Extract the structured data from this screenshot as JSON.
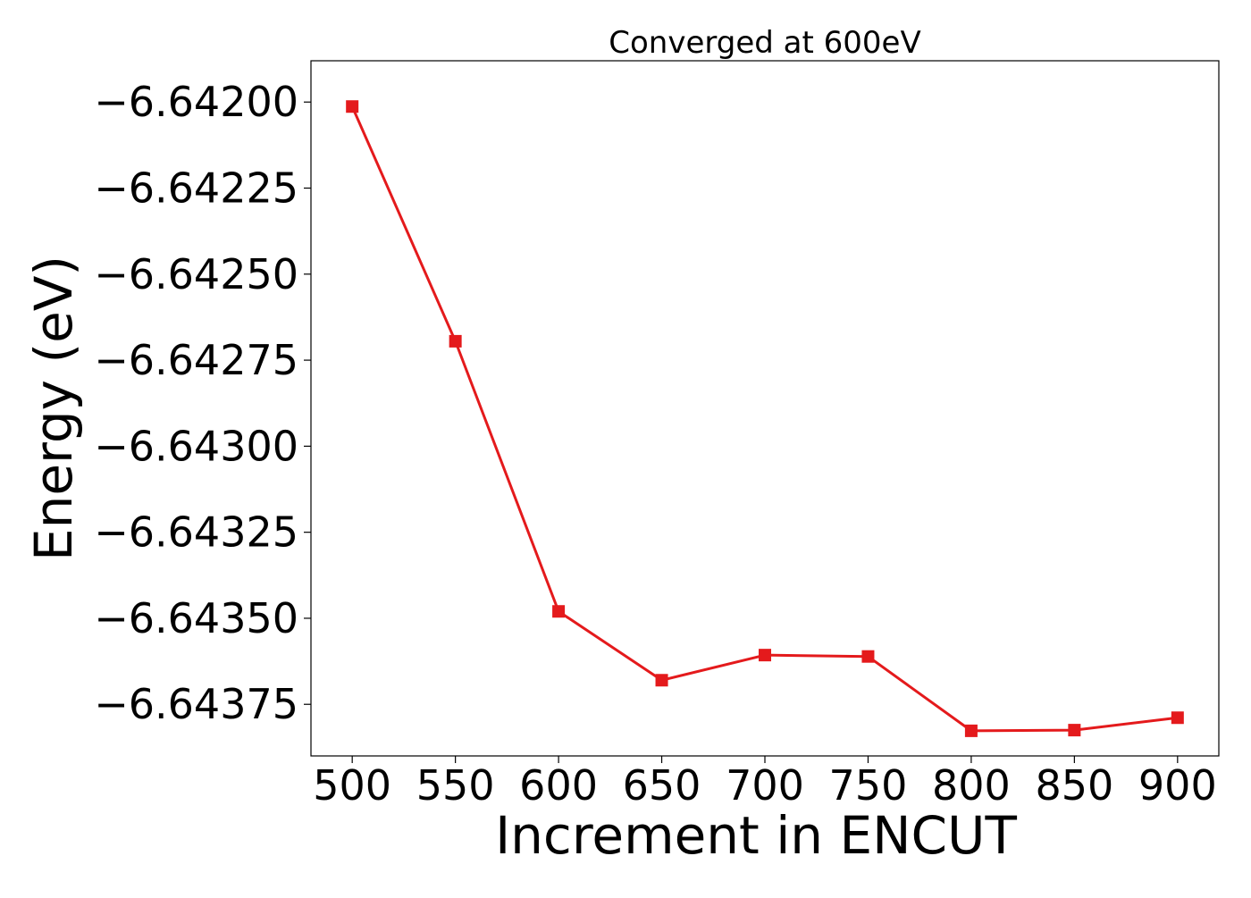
{
  "chart_data": {
    "type": "line",
    "title": "Converged at 600eV",
    "xlabel": "Increment in ENCUT",
    "ylabel": "Energy (eV)",
    "x": [
      500,
      550,
      600,
      650,
      700,
      750,
      800,
      850,
      900
    ],
    "series": [
      {
        "values": [
          -6.642013,
          -6.642695,
          -6.64348,
          -6.64368,
          -6.643607,
          -6.643611,
          -6.643827,
          -6.643825,
          -6.643789
        ],
        "color": "#e41a1c",
        "marker": "square"
      }
    ],
    "xlim": [
      480,
      920
    ],
    "ylim": [
      -6.6439,
      -6.64188
    ],
    "xticks": [
      500,
      550,
      600,
      650,
      700,
      750,
      800,
      850,
      900
    ],
    "xtick_labels": [
      "500",
      "550",
      "600",
      "650",
      "700",
      "750",
      "800",
      "850",
      "900"
    ],
    "yticks": [
      -6.642,
      -6.64225,
      -6.6425,
      -6.64275,
      -6.643,
      -6.64325,
      -6.6435,
      -6.64375
    ],
    "ytick_labels": [
      "−6.64200",
      "−6.64225",
      "−6.64250",
      "−6.64275",
      "−6.64300",
      "−6.64325",
      "−6.64350",
      "−6.64375"
    ],
    "grid": false,
    "legend": "none"
  }
}
